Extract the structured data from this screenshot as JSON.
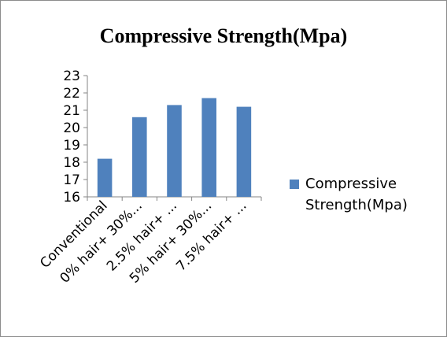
{
  "chart_data": {
    "type": "bar",
    "title": "Compressive Strength(Mpa)",
    "categories": [
      "Conventional",
      "0% hair+ 30%...",
      "2.5% hair+ ...",
      "5% hair+ 30%...",
      "7.5% hair+ ..."
    ],
    "series": [
      {
        "name": "Compressive Strength(Mpa)",
        "values": [
          18.2,
          20.6,
          21.3,
          21.7,
          21.2
        ],
        "color": "#4f81bd"
      }
    ],
    "ylim": [
      16,
      23
    ],
    "yticks": [
      "16",
      "17",
      "18",
      "19",
      "20",
      "21",
      "22",
      "23"
    ],
    "xlabel": "",
    "ylabel": "",
    "grid": false,
    "legend_position": "right"
  }
}
